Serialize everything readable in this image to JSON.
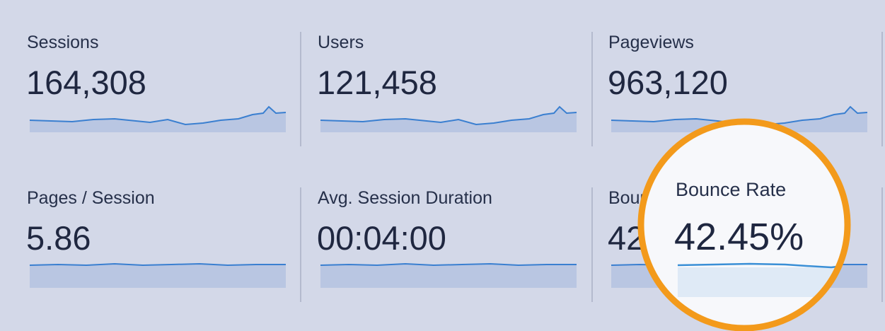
{
  "metrics": [
    {
      "label": "Sessions",
      "value": "164,308"
    },
    {
      "label": "Users",
      "value": "121,458"
    },
    {
      "label": "Pageviews",
      "value": "963,120"
    },
    {
      "label": "Pages / Session",
      "value": "5.86"
    },
    {
      "label": "Avg. Session Duration",
      "value": "00:04:00"
    },
    {
      "label": "Bounce Rate",
      "value": "42.45%"
    }
  ]
}
